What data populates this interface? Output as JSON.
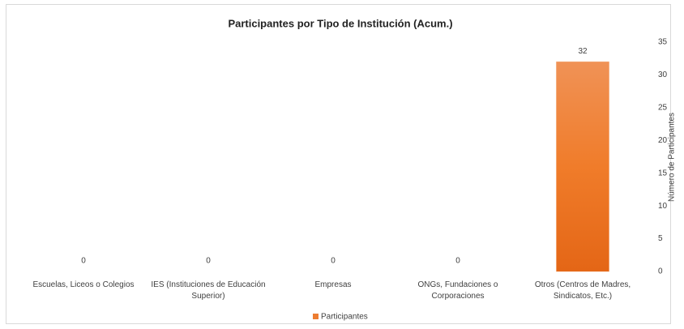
{
  "chart_data": {
    "type": "bar",
    "title": "Participantes por Tipo de Institución (Acum.)",
    "categories": [
      "Escuelas, Liceos o Colegios",
      "IES (Instituciones de Educación Superior)",
      "Empresas",
      "ONGs, Fundaciones o Corporaciones",
      "Otros (Centros de Madres, Sindicatos, Etc.)"
    ],
    "series": [
      {
        "name": "Participantes",
        "color": "#ed7d31",
        "values": [
          0,
          0,
          0,
          0,
          32
        ]
      }
    ],
    "y_label": "Número de Participantes",
    "ylim": [
      0,
      35
    ],
    "yticks": [
      0,
      5,
      10,
      15,
      20,
      25,
      30,
      35
    ],
    "y_axis_side": "right",
    "grid": false,
    "legend": "bottom"
  }
}
